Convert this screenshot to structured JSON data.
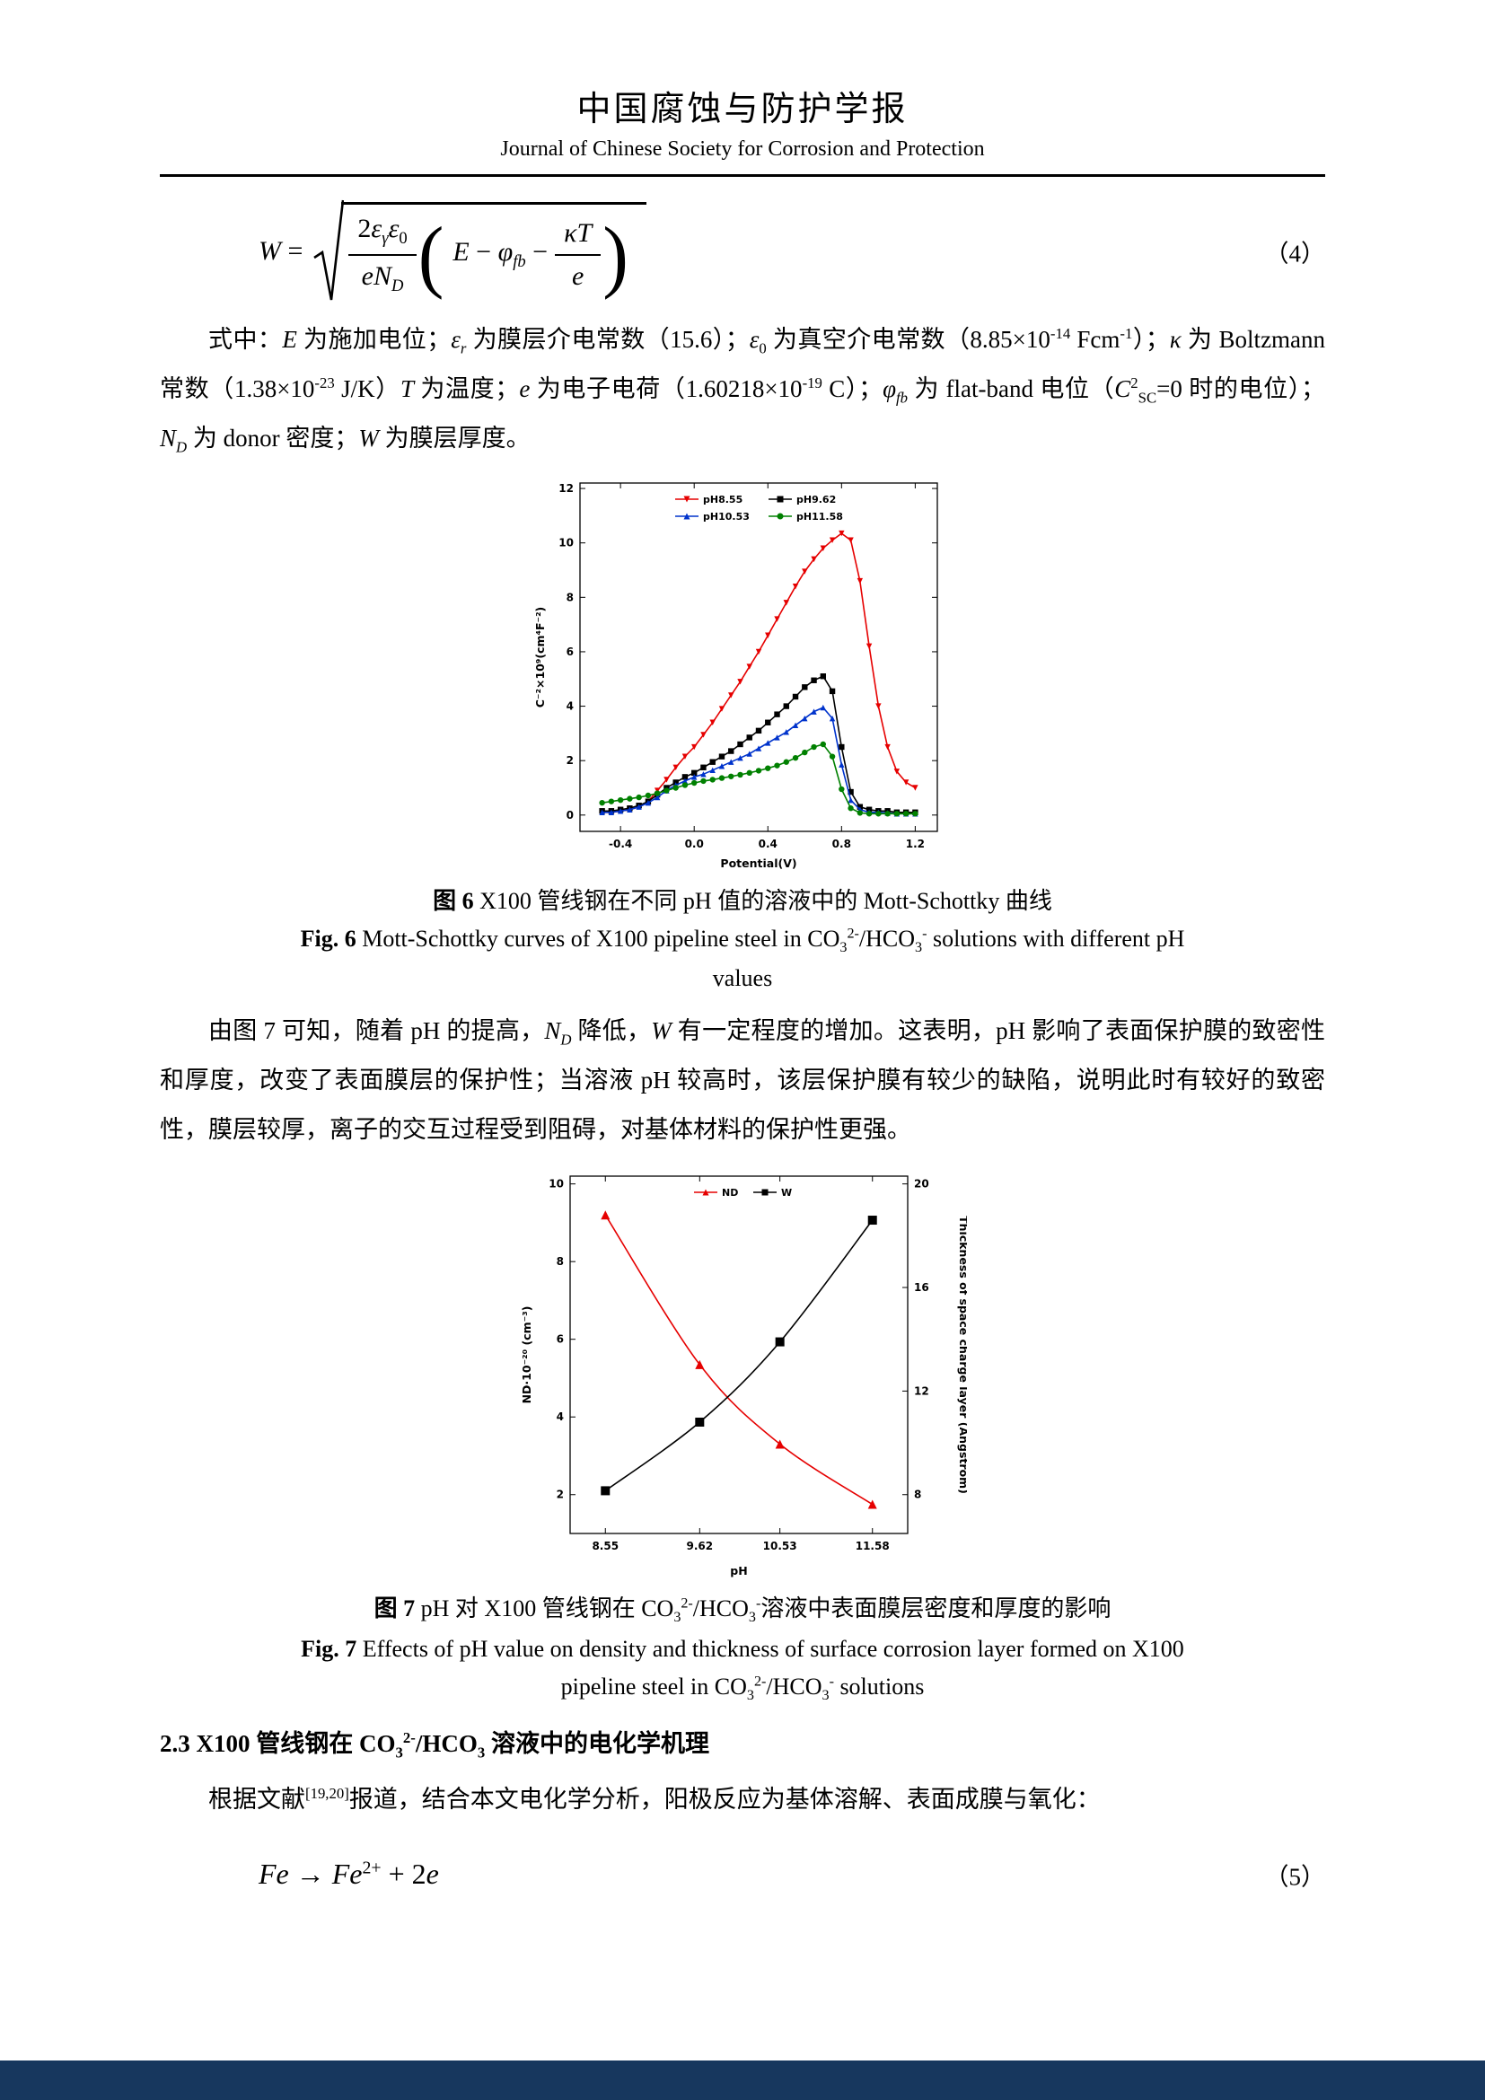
{
  "page": {
    "footer_bar_color": "#17375e"
  },
  "header": {
    "title_zh": "中国腐蚀与防护学报",
    "title_en": "Journal of Chinese Society for Corrosion and Protection"
  },
  "equation4": {
    "lhs_html": "<i>W</i> =",
    "frac_num_html": "2<i>ε</i><sub><i>γ</i></sub><i>ε</i><sub>0</sub>",
    "frac_den_html": "<i>eN</i><sub><i>D</i></sub>",
    "open_paren": "(",
    "paren_body_html": "<i>E</i> − <i>φ</i><sub><i>fb</i></sub> −",
    "ifrac_num_html": "<i>κT</i>",
    "ifrac_den_html": "<i>e</i>",
    "close_paren": ")",
    "number": "（4）"
  },
  "para1_html": "式中：<i>E</i> 为施加电位；<i>ε</i><sub><i>r</i></sub> 为膜层介电常数（15.6）；<i>ε</i><sub>0</sub> 为真空介电常数（8.85×10<sup>-14</sup> Fcm<sup>-1</sup>）；<i>κ</i> 为 Boltzmann 常数（1.38×10<sup>-23</sup> J/K）<i>T</i> 为温度；<i>e</i> 为电子电荷（1.60218×10<sup>-19</sup> C）；<i>φ</i><sub><i>fb</i></sub> 为 flat-band 电位（<i>C</i><sup>2</sup><sub>SC</sub>=0 时的电位）；<i>N</i><sub><i>D</i></sub> 为 donor 密度；<i>W</i> 为膜层厚度。",
  "fig6": {
    "caption_zh_html": "<b>图 6</b> X100 管线钢在不同 pH 值的溶液中的 Mott-Schottky 曲线",
    "caption_en_html": "<b>Fig. 6</b> Mott-Schottky curves of X100 pipeline steel in CO<sub>3</sub><sup>2-</sup>/HCO<sub>3</sub><sup>-</sup> solutions with different pH",
    "caption_en_line2": "values"
  },
  "para2_html": "由图 7 可知，随着 pH 的提高，<i>N</i><sub><i>D</i></sub> 降低，<i>W</i> 有一定程度的增加。这表明，pH 影响了表面保护膜的致密性和厚度，改变了表面膜层的保护性；当溶液 pH 较高时，该层保护膜有较少的缺陷，说明此时有较好的致密性，膜层较厚，离子的交互过程受到阻碍，对基体材料的保护性更强。",
  "fig7": {
    "caption_zh_html": "<b>图 7</b> pH 对 X100 管线钢在 CO<sub>3</sub><sup>2-</sup>/HCO<sub>3</sub><sup>-</sup>溶液中表面膜层密度和厚度的影响",
    "caption_en_line1_html": "<b>Fig. 7</b> Effects of pH value on density and thickness of surface corrosion layer formed on X100",
    "caption_en_line2_html": "pipeline steel in CO<sub>3</sub><sup>2-</sup>/HCO<sub>3</sub><sup>-</sup> solutions"
  },
  "section23_html": "2.3 X100 管线钢在 CO<sub>3</sub><sup>2-</sup>/HCO<sub>3</sub> 溶液中的电化学机理",
  "para3_html": "根据文献<sup>[19,20]</sup>报道，结合本文电化学分析，阳极反应为基体溶解、表面成膜与氧化：",
  "equation5": {
    "formula_html": "<i>Fe</i> → <i>Fe</i><sup>2+</sup> + 2<i>e</i>",
    "number": "（5）"
  },
  "chart_data": [
    {
      "id": "fig6",
      "type": "line",
      "title": "Mott-Schottky curves of X100 pipeline steel at different pH",
      "xlabel": "Potential(V)",
      "ylabel_left": "C⁻²×10⁹(cm⁴F⁻²)",
      "xlim": [
        -0.62,
        1.32
      ],
      "ylim_left": [
        -0.6,
        12.2
      ],
      "xticks": [
        -0.4,
        0.0,
        0.4,
        0.8,
        1.2
      ],
      "xtick_labels": [
        "-0.4",
        "0.0",
        "0.4",
        "0.8",
        "1.2"
      ],
      "yticks_left": [
        0,
        2,
        4,
        6,
        8,
        10,
        12
      ],
      "legend_position": "top-inside",
      "grid": false,
      "x": [
        -0.5,
        -0.45,
        -0.4,
        -0.35,
        -0.3,
        -0.25,
        -0.2,
        -0.15,
        -0.1,
        -0.05,
        0,
        0.05,
        0.1,
        0.15,
        0.2,
        0.25,
        0.3,
        0.35,
        0.4,
        0.45,
        0.5,
        0.55,
        0.6,
        0.65,
        0.7,
        0.75,
        0.8,
        0.85,
        0.9,
        0.95,
        1,
        1.05,
        1.1,
        1.15,
        1.2
      ],
      "series": [
        {
          "name": "pH8.55",
          "color": "#e60000",
          "marker": "triangle-down",
          "y": [
            0.1,
            0.1,
            0.15,
            0.2,
            0.3,
            0.5,
            0.9,
            1.3,
            1.75,
            2.15,
            2.5,
            2.95,
            3.4,
            3.9,
            4.4,
            4.9,
            5.45,
            6,
            6.6,
            7.2,
            7.8,
            8.4,
            8.95,
            9.4,
            9.8,
            10.1,
            10.35,
            10.1,
            8.6,
            6.2,
            4,
            2.5,
            1.6,
            1.2,
            1
          ]
        },
        {
          "name": "pH9.62",
          "color": "#000000",
          "marker": "square",
          "y": [
            0.15,
            0.15,
            0.2,
            0.25,
            0.35,
            0.5,
            0.75,
            1,
            1.2,
            1.4,
            1.55,
            1.75,
            1.95,
            2.15,
            2.35,
            2.6,
            2.85,
            3.1,
            3.4,
            3.7,
            4,
            4.35,
            4.7,
            4.95,
            5.1,
            4.55,
            2.5,
            0.85,
            0.3,
            0.2,
            0.15,
            0.15,
            0.1,
            0.1,
            0.1
          ]
        },
        {
          "name": "pH10.53",
          "color": "#0033cc",
          "marker": "triangle-up",
          "y": [
            0.1,
            0.1,
            0.15,
            0.2,
            0.3,
            0.45,
            0.65,
            0.9,
            1.1,
            1.25,
            1.4,
            1.5,
            1.65,
            1.8,
            1.95,
            2.1,
            2.25,
            2.45,
            2.65,
            2.85,
            3.05,
            3.3,
            3.55,
            3.8,
            3.95,
            3.55,
            1.85,
            0.55,
            0.2,
            0.1,
            0.1,
            0.08,
            0.05,
            0.05,
            0.05
          ]
        },
        {
          "name": "pH11.58",
          "color": "#008000",
          "marker": "circle",
          "y": [
            0.45,
            0.5,
            0.55,
            0.6,
            0.65,
            0.72,
            0.8,
            0.9,
            1,
            1.1,
            1.18,
            1.25,
            1.3,
            1.36,
            1.42,
            1.48,
            1.55,
            1.63,
            1.72,
            1.82,
            1.95,
            2.1,
            2.3,
            2.5,
            2.6,
            2.15,
            0.95,
            0.25,
            0.08,
            0.05,
            0.05,
            0.05,
            0.05,
            0.05,
            0.05
          ]
        }
      ]
    },
    {
      "id": "fig7",
      "type": "line",
      "title": "Effect of pH on donor density and space charge layer thickness",
      "xlabel": "pH",
      "ylabel_left": "ND·10⁻²⁰ (cm⁻³)",
      "ylabel_right": "Thickness of space charge layer (Angstrom)",
      "xlim": [
        8.15,
        11.98
      ],
      "ylim_left": [
        1.0,
        10.2
      ],
      "ylim_right": [
        6.5,
        20.3
      ],
      "xticks": [
        8.55,
        9.62,
        10.53,
        11.58
      ],
      "xtick_labels": [
        "8.55",
        "9.62",
        "10.53",
        "11.58"
      ],
      "yticks_left": [
        2,
        4,
        6,
        8,
        10
      ],
      "yticks_right": [
        8,
        12,
        16,
        20
      ],
      "legend_position": "top-inside",
      "grid": false,
      "series": [
        {
          "name": "ND",
          "axis": "left",
          "color": "#e60000",
          "marker": "triangle-up",
          "x": [
            8.55,
            9.62,
            10.53,
            11.58
          ],
          "y": [
            9.2,
            5.35,
            3.3,
            1.75
          ]
        },
        {
          "name": "W",
          "axis": "right",
          "color": "#000000",
          "marker": "square",
          "x": [
            8.55,
            9.62,
            10.53,
            11.58
          ],
          "y": [
            8.15,
            10.8,
            13.9,
            18.6
          ]
        }
      ]
    }
  ]
}
